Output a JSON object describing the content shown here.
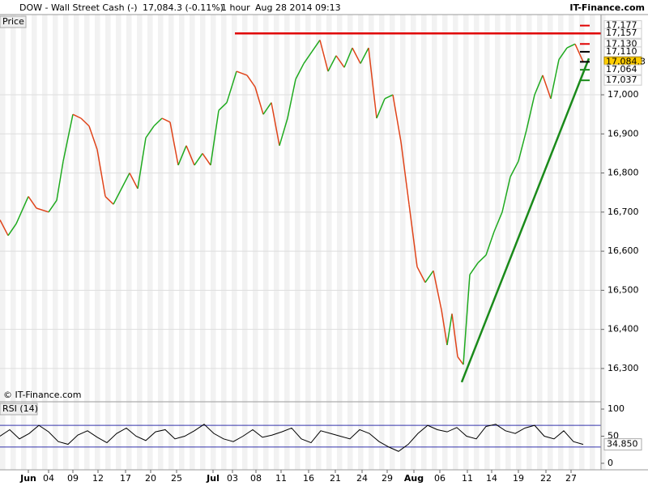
{
  "header": {
    "symbol": "DOW - Wall Street Cash (-)",
    "quote": "17,084.3 (-0.11%)",
    "interval": "1 hour",
    "timestamp": "Aug 28 2014 09:13",
    "brand": "IT-Finance.com"
  },
  "chart_data": [
    {
      "type": "line",
      "title": "Price",
      "watermark": "© IT-Finance.com",
      "x": [
        0,
        10,
        20,
        35,
        45,
        60,
        70,
        78,
        90,
        100,
        110,
        120,
        130,
        140,
        150,
        160,
        170,
        180,
        190,
        200,
        210,
        220,
        230,
        240,
        250,
        260,
        270,
        280,
        292,
        305,
        315,
        325,
        335,
        345,
        355,
        365,
        375,
        385,
        395,
        405,
        415,
        425,
        435,
        445,
        455,
        465,
        475,
        485,
        495,
        505,
        515,
        525,
        535,
        545,
        552,
        558,
        565,
        572,
        580,
        590,
        600,
        610,
        620,
        630,
        640,
        650,
        660,
        670,
        680,
        690,
        700,
        710,
        720
      ],
      "series": [
        {
          "up_color": "#1faa1f",
          "down_color": "#e0441a",
          "values": [
            16680,
            16640,
            16670,
            16740,
            16710,
            16700,
            16730,
            16830,
            16950,
            16940,
            16920,
            16860,
            16740,
            16720,
            16760,
            16800,
            16760,
            16890,
            16920,
            16940,
            16930,
            16820,
            16870,
            16820,
            16850,
            16820,
            16960,
            16980,
            17060,
            17050,
            17020,
            16950,
            16980,
            16870,
            16940,
            17040,
            17080,
            17110,
            17140,
            17060,
            17100,
            17070,
            17120,
            17080,
            17120,
            16940,
            16990,
            17000,
            16880,
            16720,
            16560,
            16520,
            16550,
            16450,
            16360,
            16440,
            16330,
            16310,
            16540,
            16570,
            16590,
            16650,
            16700,
            16790,
            16830,
            16910,
            17000,
            17050,
            16990,
            17090,
            17120,
            17130,
            17084.3
          ]
        }
      ],
      "xlim": [
        0,
        742
      ],
      "ylim": [
        16217,
        17201
      ],
      "yticks": [
        {
          "value": 16300,
          "label": "16,300"
        },
        {
          "value": 16400,
          "label": "16,400"
        },
        {
          "value": 16500,
          "label": "16,500"
        },
        {
          "value": 16600,
          "label": "16,600"
        },
        {
          "value": 16700,
          "label": "16,700"
        },
        {
          "value": 16800,
          "label": "16,800"
        },
        {
          "value": 16900,
          "label": "16,900"
        },
        {
          "value": 17000,
          "label": "17,000"
        }
      ],
      "grid": true,
      "lines": [
        {
          "x": [
            290,
            742
          ],
          "values": [
            17157,
            17157
          ],
          "color": "#e00000"
        },
        {
          "x": [
            570,
            727
          ],
          "values": [
            16265,
            17093
          ],
          "color": "#1a8a1a"
        }
      ],
      "levels": [
        {
          "value": 17177,
          "label": "17,177",
          "color": "#e00000",
          "bg": "#ffffff"
        },
        {
          "value": 17157,
          "label": "17,157",
          "color": "#e00000",
          "bg": "#ffffff"
        },
        {
          "value": 17130,
          "label": "17,130",
          "color": "#e00000",
          "bg": "#ffffff"
        },
        {
          "value": 17110,
          "label": "17,110",
          "color": "#000000",
          "bg": "#ffffff"
        },
        {
          "value": 17084.3,
          "label": "17,084.3",
          "color": "#000000",
          "bg": "#ffcc00"
        },
        {
          "value": 17064,
          "label": "17,064",
          "color": "#1a8a1a",
          "bg": "#ffffff"
        },
        {
          "value": 17037,
          "label": "17,037",
          "color": "#1a8a1a",
          "bg": "#ffffff"
        }
      ]
    },
    {
      "type": "line",
      "title": "RSI (14)",
      "x": [
        0,
        12,
        24,
        36,
        48,
        60,
        72,
        84,
        96,
        108,
        120,
        132,
        144,
        156,
        168,
        180,
        192,
        204,
        216,
        228,
        240,
        252,
        264,
        276,
        288,
        300,
        312,
        324,
        336,
        348,
        360,
        372,
        384,
        396,
        408,
        420,
        432,
        444,
        456,
        468,
        480,
        492,
        504,
        516,
        528,
        540,
        552,
        564,
        576,
        588,
        600,
        612,
        624,
        636,
        648,
        660,
        672,
        684,
        696,
        708,
        720
      ],
      "series": [
        {
          "color": "#000000",
          "values": [
            50,
            62,
            45,
            55,
            70,
            58,
            40,
            35,
            52,
            60,
            48,
            38,
            55,
            65,
            50,
            42,
            58,
            62,
            45,
            50,
            60,
            72,
            55,
            45,
            40,
            50,
            62,
            48,
            52,
            58,
            65,
            45,
            38,
            60,
            55,
            50,
            45,
            62,
            55,
            40,
            30,
            22,
            35,
            55,
            70,
            62,
            58,
            66,
            50,
            45,
            68,
            72,
            60,
            55,
            65,
            70,
            50,
            45,
            60,
            40,
            34.85
          ]
        }
      ],
      "xlim": [
        0,
        742
      ],
      "ylim": [
        -12,
        112
      ],
      "yticks": [
        0,
        50,
        100
      ],
      "levels": [
        {
          "value": 70,
          "color": "#3333aa"
        },
        {
          "value": 30,
          "color": "#3333aa"
        }
      ],
      "last": {
        "value": 34.85,
        "label": "34.850"
      },
      "xticks": [
        {
          "value": 35,
          "label": "Jun"
        },
        {
          "value": 60,
          "label": "04"
        },
        {
          "value": 90,
          "label": "09"
        },
        {
          "value": 121,
          "label": "12"
        },
        {
          "value": 155,
          "label": "17"
        },
        {
          "value": 186,
          "label": "20"
        },
        {
          "value": 218,
          "label": "25"
        },
        {
          "value": 263,
          "label": "Jul"
        },
        {
          "value": 287,
          "label": "03"
        },
        {
          "value": 316,
          "label": "08"
        },
        {
          "value": 347,
          "label": "11"
        },
        {
          "value": 381,
          "label": "16"
        },
        {
          "value": 414,
          "label": "21"
        },
        {
          "value": 447,
          "label": "24"
        },
        {
          "value": 478,
          "label": "29"
        },
        {
          "value": 511,
          "label": "Aug"
        },
        {
          "value": 543,
          "label": "06"
        },
        {
          "value": 577,
          "label": "11"
        },
        {
          "value": 607,
          "label": "14"
        },
        {
          "value": 640,
          "label": "19"
        },
        {
          "value": 674,
          "label": "22"
        },
        {
          "value": 705,
          "label": "27"
        }
      ]
    }
  ]
}
